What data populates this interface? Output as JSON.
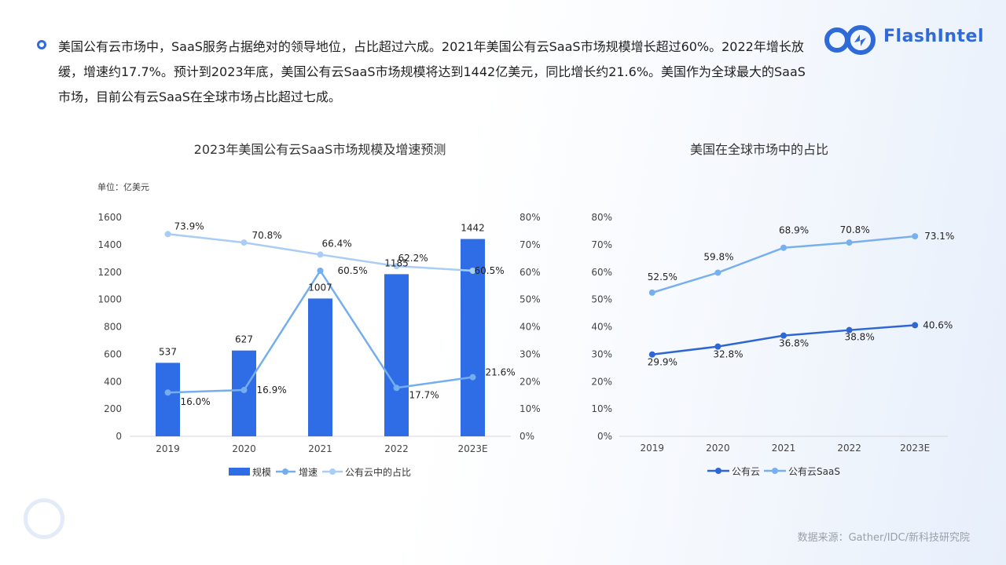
{
  "intro": {
    "text": "美国公有云市场中，SaaS服务占据绝对的领导地位，占比超过六成。2021年美国公有云SaaS市场规模增长超过60%。2022年增长放缓，增速约17.7%。预计到2023年底，美国公有云SaaS市场规模将达到1442亿美元，同比增长约21.6%。美国作为全球最大的SaaS市场，目前公有云SaaS在全球市场占比超过七成。"
  },
  "logo": {
    "text": "FlashIntel"
  },
  "source": "数据来源：Gather/IDC/新科技研究院",
  "colors": {
    "bar": "#2f6de6",
    "growth": "#74aeee",
    "share": "#a9cdf5",
    "public_cloud": "#2f66d6",
    "saas": "#78b0ef",
    "axis": "#d6d6d6",
    "brand": "#2f6bd8"
  },
  "chart_data": [
    {
      "type": "bar",
      "title": "2023年美国公有云SaaS市场规模及增速预测",
      "unit_label": "单位：亿美元",
      "categories": [
        "2019",
        "2020",
        "2021",
        "2022",
        "2023E"
      ],
      "ylim": [
        0,
        1600
      ],
      "y2lim": [
        0,
        80
      ],
      "y_ticks": [
        "0",
        "200",
        "400",
        "600",
        "800",
        "1000",
        "1200",
        "1400",
        "1600"
      ],
      "y2_ticks": [
        "0%",
        "10%",
        "20%",
        "30%",
        "40%",
        "50%",
        "60%",
        "70%",
        "80%"
      ],
      "series": [
        {
          "name": "规模",
          "kind": "bar",
          "axis": "left",
          "values": [
            537,
            627,
            1007,
            1185,
            1442
          ],
          "labels": [
            "537",
            "627",
            "1007",
            "1185",
            "1442"
          ]
        },
        {
          "name": "增速",
          "kind": "line",
          "axis": "right",
          "values": [
            16.0,
            16.9,
            60.5,
            17.7,
            21.6
          ],
          "labels": [
            "16.0%",
            "16.9%",
            "60.5%",
            "17.7%",
            "21.6%"
          ]
        },
        {
          "name": "公有云中的占比",
          "kind": "line",
          "axis": "right",
          "values": [
            73.9,
            70.8,
            66.4,
            62.2,
            60.5
          ],
          "labels": [
            "73.9%",
            "70.8%",
            "66.4%",
            "62.2%",
            "60.5%"
          ]
        }
      ],
      "legend": "bottom"
    },
    {
      "type": "line",
      "title": "美国在全球市场中的占比",
      "categories": [
        "2019",
        "2020",
        "2021",
        "2022",
        "2023E"
      ],
      "ylim": [
        0,
        80
      ],
      "y_ticks": [
        "0%",
        "10%",
        "20%",
        "30%",
        "40%",
        "50%",
        "60%",
        "70%",
        "80%"
      ],
      "series": [
        {
          "name": "公有云",
          "values": [
            29.9,
            32.8,
            36.8,
            38.8,
            40.6
          ],
          "labels": [
            "29.9%",
            "32.8%",
            "36.8%",
            "38.8%",
            "40.6%"
          ]
        },
        {
          "name": "公有云SaaS",
          "values": [
            52.5,
            59.8,
            68.9,
            70.8,
            73.1
          ],
          "labels": [
            "52.5%",
            "59.8%",
            "68.9%",
            "70.8%",
            "73.1%"
          ]
        }
      ],
      "legend": "bottom"
    }
  ]
}
